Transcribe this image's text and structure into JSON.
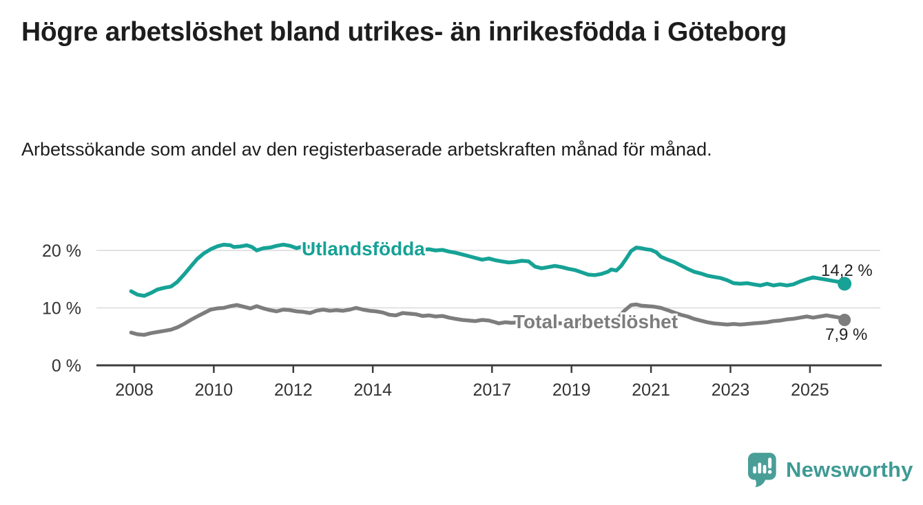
{
  "header": {
    "title": "Högre arbetslöshet bland utrikes- än inrikesfödda i Göteborg",
    "subtitle": "Arbetssökande som andel av den registerbaserade arbetskraften månad för månad."
  },
  "footer": {
    "brand": "Newsworthy",
    "logo_icon": "speech-bubble-barchart-icon"
  },
  "colors": {
    "series_foreign_born": "#16a296",
    "series_total": "#7d7d7d",
    "axis": "#3c3c3c",
    "gridline": "#d9d9d9",
    "text": "#333333",
    "brand_teal": "#4a9e98"
  },
  "chart_data": {
    "type": "line",
    "title": "Högre arbetslöshet bland utrikes- än inrikesfödda i Göteborg",
    "subtitle": "Arbetssökande som andel av den registerbaserade arbetskraften månad för månad.",
    "xlabel": "",
    "ylabel": "",
    "x_axis": {
      "ticks": [
        2008,
        2010,
        2012,
        2014,
        2017,
        2019,
        2021,
        2023,
        2025
      ],
      "range": [
        2007.0,
        2026.9
      ]
    },
    "y_axis": {
      "ticks": [
        {
          "value": 0,
          "label": "0 %"
        },
        {
          "value": 10,
          "label": "10 %"
        },
        {
          "value": 20,
          "label": "20 %"
        }
      ],
      "range": [
        0,
        22.9
      ]
    },
    "grid": "horizontal-only",
    "legend_position": "inline-labels",
    "series": [
      {
        "name": "Utlandsfödda",
        "color": "#16a296",
        "end_label": "14,2 %",
        "end_value": 14.2,
        "points": [
          [
            2007.92,
            12.9
          ],
          [
            2008.08,
            12.3
          ],
          [
            2008.25,
            12.1
          ],
          [
            2008.42,
            12.6
          ],
          [
            2008.58,
            13.2
          ],
          [
            2008.75,
            13.5
          ],
          [
            2008.92,
            13.7
          ],
          [
            2009.08,
            14.5
          ],
          [
            2009.25,
            15.8
          ],
          [
            2009.42,
            17.2
          ],
          [
            2009.58,
            18.5
          ],
          [
            2009.75,
            19.5
          ],
          [
            2009.92,
            20.2
          ],
          [
            2010.08,
            20.7
          ],
          [
            2010.25,
            21.0
          ],
          [
            2010.42,
            20.9
          ],
          [
            2010.5,
            20.6
          ],
          [
            2010.67,
            20.7
          ],
          [
            2010.83,
            20.9
          ],
          [
            2010.96,
            20.6
          ],
          [
            2011.08,
            20.0
          ],
          [
            2011.25,
            20.4
          ],
          [
            2011.42,
            20.5
          ],
          [
            2011.58,
            20.8
          ],
          [
            2011.75,
            21.0
          ],
          [
            2011.92,
            20.8
          ],
          [
            2012.08,
            20.4
          ],
          [
            2012.25,
            20.7
          ],
          [
            2012.42,
            20.6
          ],
          [
            2012.58,
            20.4
          ],
          [
            2012.75,
            20.5
          ],
          [
            2012.92,
            20.3
          ],
          [
            2013.08,
            20.5
          ],
          [
            2013.25,
            20.3
          ],
          [
            2013.42,
            20.4
          ],
          [
            2013.58,
            20.2
          ],
          [
            2013.75,
            20.4
          ],
          [
            2013.92,
            20.3
          ],
          [
            2014.08,
            20.5
          ],
          [
            2014.25,
            20.3
          ],
          [
            2014.42,
            20.4
          ],
          [
            2014.58,
            20.2
          ],
          [
            2014.75,
            20.3
          ],
          [
            2014.92,
            20.2
          ],
          [
            2015.08,
            20.3
          ],
          [
            2015.25,
            20.1
          ],
          [
            2015.42,
            20.2
          ],
          [
            2015.58,
            20.0
          ],
          [
            2015.75,
            20.1
          ],
          [
            2015.92,
            19.8
          ],
          [
            2016.08,
            19.6
          ],
          [
            2016.25,
            19.3
          ],
          [
            2016.42,
            19.0
          ],
          [
            2016.58,
            18.7
          ],
          [
            2016.75,
            18.4
          ],
          [
            2016.92,
            18.6
          ],
          [
            2017.08,
            18.3
          ],
          [
            2017.25,
            18.1
          ],
          [
            2017.42,
            17.9
          ],
          [
            2017.58,
            18.0
          ],
          [
            2017.75,
            18.2
          ],
          [
            2017.92,
            18.1
          ],
          [
            2018.08,
            17.2
          ],
          [
            2018.25,
            16.9
          ],
          [
            2018.42,
            17.1
          ],
          [
            2018.58,
            17.3
          ],
          [
            2018.75,
            17.1
          ],
          [
            2018.92,
            16.8
          ],
          [
            2019.08,
            16.6
          ],
          [
            2019.25,
            16.2
          ],
          [
            2019.42,
            15.8
          ],
          [
            2019.58,
            15.7
          ],
          [
            2019.75,
            15.9
          ],
          [
            2019.92,
            16.3
          ],
          [
            2020.0,
            16.7
          ],
          [
            2020.13,
            16.5
          ],
          [
            2020.25,
            17.3
          ],
          [
            2020.38,
            18.6
          ],
          [
            2020.5,
            19.9
          ],
          [
            2020.63,
            20.5
          ],
          [
            2020.75,
            20.4
          ],
          [
            2020.88,
            20.2
          ],
          [
            2021.0,
            20.1
          ],
          [
            2021.13,
            19.7
          ],
          [
            2021.25,
            18.9
          ],
          [
            2021.42,
            18.4
          ],
          [
            2021.58,
            18.0
          ],
          [
            2021.75,
            17.4
          ],
          [
            2021.92,
            16.8
          ],
          [
            2022.08,
            16.3
          ],
          [
            2022.25,
            16.0
          ],
          [
            2022.42,
            15.6
          ],
          [
            2022.58,
            15.4
          ],
          [
            2022.75,
            15.2
          ],
          [
            2022.92,
            14.8
          ],
          [
            2023.08,
            14.3
          ],
          [
            2023.25,
            14.2
          ],
          [
            2023.42,
            14.3
          ],
          [
            2023.58,
            14.1
          ],
          [
            2023.75,
            13.9
          ],
          [
            2023.92,
            14.2
          ],
          [
            2024.08,
            13.9
          ],
          [
            2024.25,
            14.1
          ],
          [
            2024.42,
            13.9
          ],
          [
            2024.58,
            14.1
          ],
          [
            2024.75,
            14.6
          ],
          [
            2024.92,
            15.0
          ],
          [
            2025.08,
            15.3
          ],
          [
            2025.25,
            15.1
          ],
          [
            2025.42,
            14.9
          ],
          [
            2025.58,
            14.7
          ],
          [
            2025.75,
            14.5
          ],
          [
            2025.87,
            14.2
          ]
        ]
      },
      {
        "name": "Total arbetslöshet",
        "color": "#7d7d7d",
        "end_label": "7,9 %",
        "end_value": 7.9,
        "points": [
          [
            2007.92,
            5.7
          ],
          [
            2008.08,
            5.4
          ],
          [
            2008.25,
            5.3
          ],
          [
            2008.42,
            5.6
          ],
          [
            2008.58,
            5.8
          ],
          [
            2008.75,
            6.0
          ],
          [
            2008.92,
            6.2
          ],
          [
            2009.08,
            6.6
          ],
          [
            2009.25,
            7.2
          ],
          [
            2009.42,
            7.9
          ],
          [
            2009.58,
            8.5
          ],
          [
            2009.75,
            9.1
          ],
          [
            2009.92,
            9.7
          ],
          [
            2010.08,
            9.9
          ],
          [
            2010.25,
            10.0
          ],
          [
            2010.42,
            10.3
          ],
          [
            2010.58,
            10.5
          ],
          [
            2010.75,
            10.2
          ],
          [
            2010.92,
            9.9
          ],
          [
            2011.08,
            10.3
          ],
          [
            2011.25,
            9.9
          ],
          [
            2011.42,
            9.6
          ],
          [
            2011.58,
            9.4
          ],
          [
            2011.75,
            9.7
          ],
          [
            2011.92,
            9.6
          ],
          [
            2012.08,
            9.4
          ],
          [
            2012.25,
            9.3
          ],
          [
            2012.42,
            9.1
          ],
          [
            2012.58,
            9.5
          ],
          [
            2012.75,
            9.7
          ],
          [
            2012.92,
            9.5
          ],
          [
            2013.08,
            9.6
          ],
          [
            2013.25,
            9.5
          ],
          [
            2013.42,
            9.7
          ],
          [
            2013.58,
            10.0
          ],
          [
            2013.75,
            9.7
          ],
          [
            2013.92,
            9.5
          ],
          [
            2014.08,
            9.4
          ],
          [
            2014.25,
            9.2
          ],
          [
            2014.42,
            8.8
          ],
          [
            2014.58,
            8.7
          ],
          [
            2014.75,
            9.1
          ],
          [
            2014.92,
            9.0
          ],
          [
            2015.08,
            8.9
          ],
          [
            2015.25,
            8.6
          ],
          [
            2015.42,
            8.7
          ],
          [
            2015.58,
            8.5
          ],
          [
            2015.75,
            8.6
          ],
          [
            2015.92,
            8.3
          ],
          [
            2016.08,
            8.1
          ],
          [
            2016.25,
            7.9
          ],
          [
            2016.42,
            7.8
          ],
          [
            2016.58,
            7.7
          ],
          [
            2016.75,
            7.9
          ],
          [
            2016.92,
            7.8
          ],
          [
            2017.08,
            7.5
          ],
          [
            2017.17,
            7.3
          ],
          [
            2017.33,
            7.5
          ],
          [
            2017.5,
            7.4
          ],
          [
            2017.67,
            7.5
          ],
          [
            2017.83,
            7.4
          ],
          [
            2018.0,
            7.4
          ],
          [
            2018.25,
            7.3
          ],
          [
            2018.5,
            7.4
          ],
          [
            2018.75,
            7.3
          ],
          [
            2019.0,
            7.2
          ],
          [
            2019.25,
            7.3
          ],
          [
            2019.5,
            7.2
          ],
          [
            2019.75,
            7.3
          ],
          [
            2020.0,
            7.5
          ],
          [
            2020.17,
            8.2
          ],
          [
            2020.33,
            9.5
          ],
          [
            2020.5,
            10.5
          ],
          [
            2020.63,
            10.6
          ],
          [
            2020.75,
            10.4
          ],
          [
            2020.92,
            10.3
          ],
          [
            2021.08,
            10.2
          ],
          [
            2021.25,
            10.0
          ],
          [
            2021.42,
            9.6
          ],
          [
            2021.58,
            9.2
          ],
          [
            2021.75,
            8.8
          ],
          [
            2021.92,
            8.5
          ],
          [
            2022.08,
            8.1
          ],
          [
            2022.25,
            7.8
          ],
          [
            2022.42,
            7.5
          ],
          [
            2022.58,
            7.3
          ],
          [
            2022.75,
            7.2
          ],
          [
            2022.92,
            7.1
          ],
          [
            2023.08,
            7.2
          ],
          [
            2023.25,
            7.1
          ],
          [
            2023.42,
            7.2
          ],
          [
            2023.58,
            7.3
          ],
          [
            2023.75,
            7.4
          ],
          [
            2023.92,
            7.5
          ],
          [
            2024.08,
            7.7
          ],
          [
            2024.25,
            7.8
          ],
          [
            2024.42,
            8.0
          ],
          [
            2024.58,
            8.1
          ],
          [
            2024.75,
            8.3
          ],
          [
            2024.92,
            8.5
          ],
          [
            2025.08,
            8.3
          ],
          [
            2025.25,
            8.5
          ],
          [
            2025.42,
            8.7
          ],
          [
            2025.58,
            8.5
          ],
          [
            2025.75,
            8.3
          ],
          [
            2025.87,
            7.9
          ]
        ]
      }
    ]
  }
}
